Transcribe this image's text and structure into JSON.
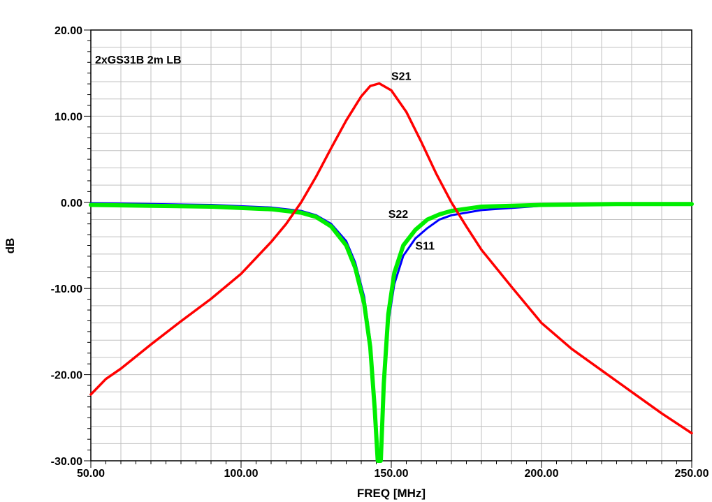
{
  "chart_data": {
    "type": "line",
    "title": "2xGS31B 2m LB",
    "xlabel": "FREQ [MHz]",
    "ylabel": "dB",
    "xlim": [
      50,
      250
    ],
    "ylim": [
      -30,
      20
    ],
    "x_ticks": [
      50,
      100,
      150,
      200,
      250
    ],
    "y_ticks": [
      -30,
      -20,
      -10,
      0,
      10,
      20
    ],
    "x_tick_labels": [
      "50.00",
      "100.00",
      "150.00",
      "200.00",
      "250.00"
    ],
    "y_tick_labels": [
      "-30.00",
      "-20.00",
      "-10.00",
      "0.00",
      "10.00",
      "20.00"
    ],
    "grid": true,
    "series": [
      {
        "name": "S21",
        "color": "#ff0000",
        "x": [
          50,
          55,
          60,
          70,
          80,
          90,
          100,
          110,
          115,
          120,
          125,
          130,
          135,
          140,
          143,
          146,
          150,
          155,
          160,
          165,
          170,
          175,
          180,
          190,
          200,
          210,
          220,
          230,
          240,
          250
        ],
        "y": [
          -22.3,
          -20.5,
          -19.3,
          -16.5,
          -13.8,
          -11.2,
          -8.3,
          -4.6,
          -2.5,
          0.0,
          3.0,
          6.3,
          9.5,
          12.3,
          13.5,
          13.8,
          13.0,
          10.5,
          7.0,
          3.3,
          0.0,
          -2.8,
          -5.5,
          -9.8,
          -14.0,
          -17.0,
          -19.5,
          -22.0,
          -24.5,
          -26.8
        ]
      },
      {
        "name": "S11",
        "color": "#0000ff",
        "x": [
          50,
          70,
          90,
          110,
          120,
          125,
          130,
          135,
          138,
          141,
          143,
          144.5,
          145.5,
          146.5,
          147.5,
          149,
          151,
          154,
          158,
          162,
          166,
          170,
          180,
          200,
          225,
          250
        ],
        "y": [
          -0.1,
          -0.2,
          -0.3,
          -0.6,
          -1.0,
          -1.5,
          -2.5,
          -4.5,
          -7.0,
          -11.0,
          -16.0,
          -23.0,
          -30.0,
          -30.0,
          -22.0,
          -14.0,
          -9.5,
          -6.2,
          -4.2,
          -3.0,
          -2.0,
          -1.5,
          -0.9,
          -0.4,
          -0.2,
          -0.1
        ]
      },
      {
        "name": "S22",
        "color": "#00ee00",
        "x": [
          50,
          70,
          90,
          110,
          120,
          125,
          130,
          135,
          138,
          141,
          143,
          144.5,
          145.5,
          146.5,
          147.5,
          149,
          151,
          154,
          158,
          162,
          166,
          170,
          180,
          200,
          225,
          250
        ],
        "y": [
          -0.3,
          -0.4,
          -0.5,
          -0.8,
          -1.2,
          -1.7,
          -2.8,
          -5.0,
          -7.6,
          -11.8,
          -16.8,
          -24.0,
          -30.0,
          -30.0,
          -21.0,
          -13.0,
          -8.2,
          -5.0,
          -3.2,
          -2.0,
          -1.4,
          -1.0,
          -0.5,
          -0.3,
          -0.2,
          -0.2
        ]
      }
    ],
    "annotations": [
      {
        "text": "S21",
        "x": 150,
        "y": 14.2
      },
      {
        "text": "S22",
        "x": 149,
        "y": -1.8
      },
      {
        "text": "S11",
        "x": 158,
        "y": -5.5
      }
    ]
  }
}
